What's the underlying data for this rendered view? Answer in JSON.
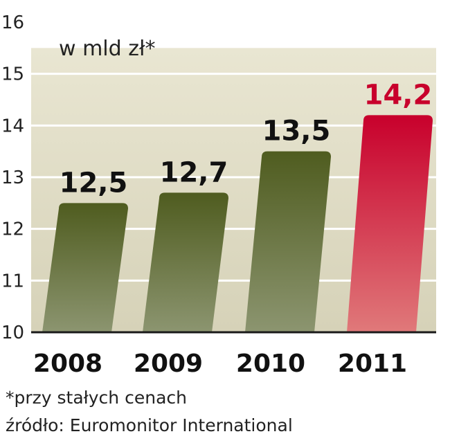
{
  "chart_data": {
    "type": "bar",
    "unit_label": "w mld zł*",
    "categories": [
      "2008",
      "2009",
      "2010",
      "2011"
    ],
    "values": [
      12.5,
      12.7,
      13.5,
      14.2
    ],
    "value_labels": [
      "12,5",
      "12,7",
      "13,5",
      "14,2"
    ],
    "ylim": [
      10,
      16
    ],
    "yticks": [
      "10",
      "11",
      "12",
      "13",
      "14",
      "15",
      "16"
    ],
    "grid": true,
    "colors": {
      "base_bar_top": "#4f5c1f",
      "base_bar_bottom": "#8c9570",
      "highlight_bar_top": "#c8002c",
      "highlight_bar_bottom": "#e0797a",
      "background_top": "#e9e6d2",
      "background_bottom": "#d6d2b8",
      "highlight_label": "#c8002c",
      "base_label": "#111111"
    },
    "highlight_index": 3
  },
  "footnote": "*przy stałych cenach",
  "source": "źródło: Euromonitor International"
}
